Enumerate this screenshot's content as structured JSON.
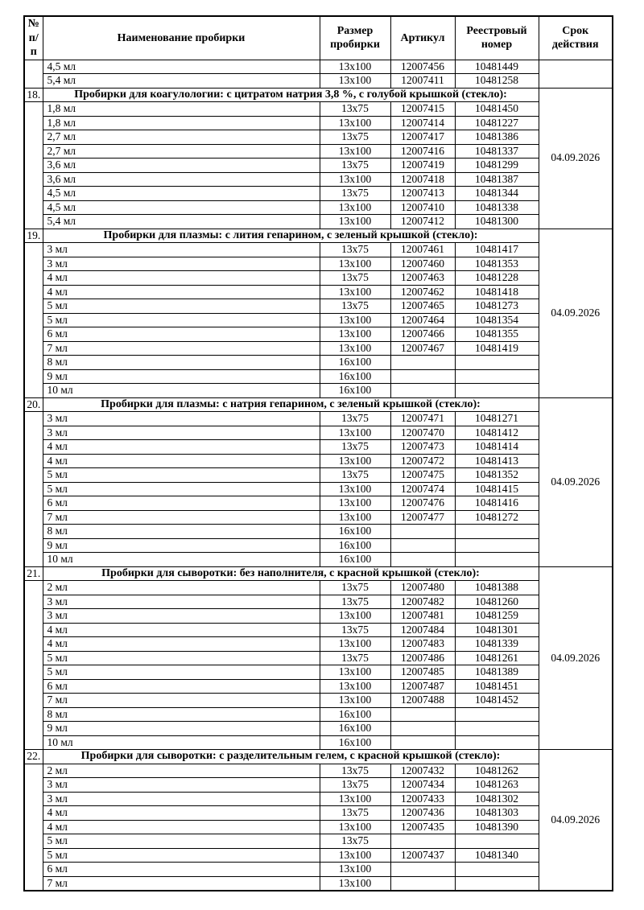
{
  "columns": [
    "№\nп/п",
    "Наименование пробирки",
    "Размер\nпробирки",
    "Артикул",
    "Реестровый\nномер",
    "Срок\nдействия"
  ],
  "sections": [
    {
      "num": "",
      "title": null,
      "validity": "",
      "rows": [
        [
          "4,5 мл",
          "13х100",
          "12007456",
          "10481449"
        ],
        [
          "5,4 мл",
          "13х100",
          "12007411",
          "10481258"
        ]
      ]
    },
    {
      "num": "18.",
      "title": "Пробирки для коагулологии: с цитратом натрия 3,8 %, с голубой крышкой (стекло):",
      "validity": "04.09.2026",
      "rows": [
        [
          "1,8 мл",
          "13х75",
          "12007415",
          "10481450"
        ],
        [
          "1,8 мл",
          "13х100",
          "12007414",
          "10481227"
        ],
        [
          "2,7 мл",
          "13х75",
          "12007417",
          "10481386"
        ],
        [
          "2,7 мл",
          "13х100",
          "12007416",
          "10481337"
        ],
        [
          "3,6 мл",
          "13х75",
          "12007419",
          "10481299"
        ],
        [
          "3,6 мл",
          "13х100",
          "12007418",
          "10481387"
        ],
        [
          "4,5 мл",
          "13х75",
          "12007413",
          "10481344"
        ],
        [
          "4,5 мл",
          "13х100",
          "12007410",
          "10481338"
        ],
        [
          "5,4 мл",
          "13х100",
          "12007412",
          "10481300"
        ]
      ]
    },
    {
      "num": "19.",
      "title": "Пробирки для плазмы: с лития гепарином, с зеленый крышкой (стекло):",
      "validity": "04.09.2026",
      "rows": [
        [
          "3 мл",
          "13х75",
          "12007461",
          "10481417"
        ],
        [
          "3 мл",
          "13х100",
          "12007460",
          "10481353"
        ],
        [
          "4 мл",
          "13х75",
          "12007463",
          "10481228"
        ],
        [
          "4 мл",
          "13х100",
          "12007462",
          "10481418"
        ],
        [
          "5 мл",
          "13х75",
          "12007465",
          "10481273"
        ],
        [
          "5 мл",
          "13х100",
          "12007464",
          "10481354"
        ],
        [
          "6 мл",
          "13х100",
          "12007466",
          "10481355"
        ],
        [
          "7 мл",
          "13х100",
          "12007467",
          "10481419"
        ],
        [
          "8 мл",
          "16х100",
          "",
          ""
        ],
        [
          "9 мл",
          "16х100",
          "",
          ""
        ],
        [
          "10 мл",
          "16х100",
          "",
          ""
        ]
      ]
    },
    {
      "num": "20.",
      "title": "Пробирки для плазмы: с натрия гепарином, с зеленый крышкой (стекло):",
      "validity": "04.09.2026",
      "rows": [
        [
          "3 мл",
          "13х75",
          "12007471",
          "10481271"
        ],
        [
          "3 мл",
          "13х100",
          "12007470",
          "10481412"
        ],
        [
          "4 мл",
          "13х75",
          "12007473",
          "10481414"
        ],
        [
          "4 мл",
          "13х100",
          "12007472",
          "10481413"
        ],
        [
          "5 мл",
          "13х75",
          "12007475",
          "10481352"
        ],
        [
          "5 мл",
          "13х100",
          "12007474",
          "10481415"
        ],
        [
          "6 мл",
          "13х100",
          "12007476",
          "10481416"
        ],
        [
          "7 мл",
          "13х100",
          "12007477",
          "10481272"
        ],
        [
          "8 мл",
          "16х100",
          "",
          ""
        ],
        [
          "9 мл",
          "16х100",
          "",
          ""
        ],
        [
          "10 мл",
          "16х100",
          "",
          ""
        ]
      ]
    },
    {
      "num": "21.",
      "title": "Пробирки для сыворотки: без наполнителя, с красной крышкой (стекло):",
      "validity": "04.09.2026",
      "rows": [
        [
          "2 мл",
          "13х75",
          "12007480",
          "10481388"
        ],
        [
          "3 мл",
          "13х75",
          "12007482",
          "10481260"
        ],
        [
          "3 мл",
          "13х100",
          "12007481",
          "10481259"
        ],
        [
          "4 мл",
          "13х75",
          "12007484",
          "10481301"
        ],
        [
          "4 мл",
          "13х100",
          "12007483",
          "10481339"
        ],
        [
          "5 мл",
          "13х75",
          "12007486",
          "10481261"
        ],
        [
          "5 мл",
          "13х100",
          "12007485",
          "10481389"
        ],
        [
          "6 мл",
          "13х100",
          "12007487",
          "10481451"
        ],
        [
          "7 мл",
          "13х100",
          "12007488",
          "10481452"
        ],
        [
          "8 мл",
          "16х100",
          "",
          ""
        ],
        [
          "9 мл",
          "16х100",
          "",
          ""
        ],
        [
          "10 мл",
          "16х100",
          "",
          ""
        ]
      ]
    },
    {
      "num": "22.",
      "title": "Пробирки для сыворотки: с разделительным гелем, с красной крышкой (стекло):",
      "validity": "04.09.2026",
      "rows": [
        [
          "2 мл",
          "13х75",
          "12007432",
          "10481262"
        ],
        [
          "3 мл",
          "13х75",
          "12007434",
          "10481263"
        ],
        [
          "3 мл",
          "13х100",
          "12007433",
          "10481302"
        ],
        [
          "4 мл",
          "13х75",
          "12007436",
          "10481303"
        ],
        [
          "4 мл",
          "13х100",
          "12007435",
          "10481390"
        ],
        [
          "5 мл",
          "13х75",
          "",
          ""
        ],
        [
          "5 мл",
          "13х100",
          "12007437",
          "10481340"
        ],
        [
          "6 мл",
          "13х100",
          "",
          ""
        ],
        [
          "7 мл",
          "13х100",
          "",
          ""
        ]
      ]
    }
  ]
}
